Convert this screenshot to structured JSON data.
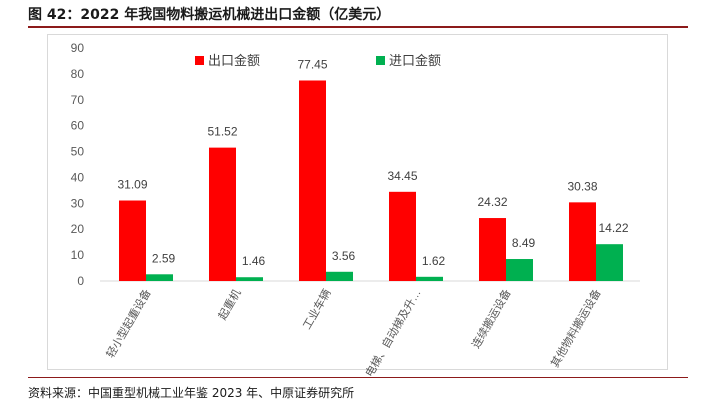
{
  "figure_title": "图 42：2022 年我国物料搬运机械进出口金额（亿美元）",
  "source": "资料来源：中国重型机械工业年鉴 2023 年、中原证券研究所",
  "chart_data": {
    "type": "bar",
    "categories": [
      "轻小型起重设备",
      "起重机",
      "工业车辆",
      "电梯、自动梯及升…",
      "连续搬运设备",
      "其他物料搬运设备"
    ],
    "series": [
      {
        "name": "出口金额",
        "color": "#ff0000",
        "values": [
          31.09,
          51.52,
          77.45,
          34.45,
          24.32,
          30.38
        ],
        "labels": [
          "31.09",
          "51.52",
          "77.45",
          "34.45",
          "24.32",
          "30.38"
        ]
      },
      {
        "name": "进口金额",
        "color": "#00b050",
        "values": [
          2.59,
          1.46,
          3.56,
          1.62,
          8.49,
          14.22
        ],
        "labels": [
          "2.59",
          "1.46",
          "3.56",
          "1.62",
          "8.49",
          "14.22"
        ]
      }
    ],
    "ylim": [
      0,
      90
    ],
    "yticks": [
      "0",
      "10",
      "20",
      "30",
      "40",
      "50",
      "60",
      "70",
      "80",
      "90"
    ],
    "grid": false,
    "legend_position": "top"
  }
}
